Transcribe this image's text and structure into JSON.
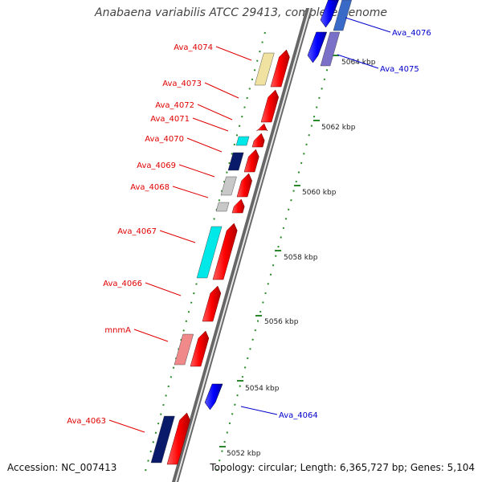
{
  "title": "Anabaena variabilis ATCC 29413, complete genome",
  "footer": {
    "accession": "Accession: NC_007413",
    "topology": "Topology: circular; Length: 6,365,727 bp; Genes: 5,104"
  },
  "colors": {
    "forward_label": "#e00000",
    "reverse_label": "#0000cc",
    "backbone": "#888888",
    "tick": "#2a8a2a"
  },
  "kbp_ticks": [
    "5052 kbp",
    "5054 kbp",
    "5056 kbp",
    "5058 kbp",
    "5060 kbp",
    "5062 kbp",
    "5064 kbp"
  ],
  "forward_genes": [
    {
      "label": "Ava_4074",
      "homolog_color": "#f0e2a0"
    },
    {
      "label": "Ava_4073",
      "homolog_color": ""
    },
    {
      "label": "Ava_4072",
      "homolog_color": ""
    },
    {
      "label": "Ava_4071",
      "homolog_color": "#00e8e8"
    },
    {
      "label": "Ava_4070",
      "homolog_color": "#0a1a6a"
    },
    {
      "label": "Ava_4069",
      "homolog_color": "#c8c8c8"
    },
    {
      "label": "Ava_4068",
      "homolog_color": "#c8c8c8"
    },
    {
      "label": "Ava_4067",
      "homolog_color": "#00e8e8"
    },
    {
      "label": "Ava_4066",
      "homolog_color": ""
    },
    {
      "label": "mnmA",
      "homolog_color": "#f08a8a"
    },
    {
      "label": "Ava_4063",
      "homolog_color": "#0a1a6a"
    }
  ],
  "reverse_genes": [
    {
      "label": "Ava_4076"
    },
    {
      "label": "Ava_4075"
    },
    {
      "label": "Ava_4064"
    }
  ]
}
